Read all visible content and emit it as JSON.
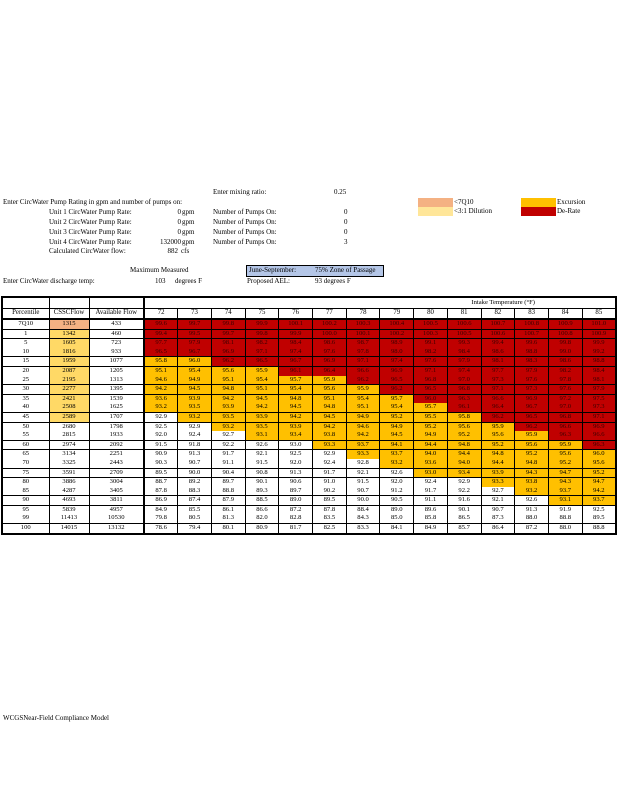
{
  "inputs": {
    "mixing_ratio_label": "Enter mixing ratio:",
    "mixing_ratio_value": "0.25",
    "pump_rating_heading": "Enter CircWater Pump Rating in gpm and number of pumps on:",
    "units": [
      {
        "label": "Unit 1 CircWater Pump Rate:",
        "rate": "0",
        "unit": "gpm",
        "pumps_label": "Number of Pumps On:",
        "pumps": "0"
      },
      {
        "label": "Unit 2 CircWater Pump Rate:",
        "rate": "0",
        "unit": "gpm",
        "pumps_label": "Number of Pumps On:",
        "pumps": "0"
      },
      {
        "label": "Unit 3 CircWater Pump Rate:",
        "rate": "0",
        "unit": "gpm",
        "pumps_label": "Number of Pumps On:",
        "pumps": "0"
      },
      {
        "label": "Unit 4 CircWater Pump Rate:",
        "rate": "132000",
        "unit": "gpm",
        "pumps_label": "Number of Pumps On:",
        "pumps": "3"
      }
    ],
    "calc_flow_label": "Calculated CircWater flow:",
    "calc_flow_value": "882",
    "calc_flow_unit": "cfs",
    "max_measured_label": "Maximum Measured",
    "discharge_label": "Enter CircWater discharge temp:",
    "discharge_value": "103",
    "discharge_unit": "degrees F",
    "zone_period": "June-September:",
    "zone_text": "75%  Zone of Passage",
    "ael_label": "Proposed AEL:",
    "ael_value": "93 degrees  F"
  },
  "legend": [
    {
      "label": "<7Q10",
      "color": "#f4b183"
    },
    {
      "label": "<3:1 Dilution",
      "color": "#ffe699"
    },
    {
      "label": "Excursion",
      "color": "#ffc000"
    },
    {
      "label": "De-Rate",
      "color": "#c00000"
    }
  ],
  "table": {
    "group_heading": "Intake Temperature  (°F)",
    "headers": [
      "Percentile",
      "CSSCFlow",
      "Available Flow"
    ],
    "temps": [
      "72",
      "73",
      "74",
      "75",
      "76",
      "77",
      "78",
      "79",
      "80",
      "81",
      "82",
      "83",
      "84",
      "85"
    ],
    "rows": [
      {
        "p": "7Q10",
        "css": "1315",
        "avail": "433",
        "ff": "7",
        "st": "RRRRRRRRRRRRRR",
        "v": [
          "99.6",
          "99.7",
          "99.8",
          "99.9",
          "100.1",
          "100.2",
          "100.3",
          "100.4",
          "100.5",
          "100.6",
          "100.7",
          "100.8",
          "100.9",
          "101.0"
        ]
      },
      {
        "p": "1",
        "css": "1342",
        "avail": "460",
        "ff": "d",
        "st": "RRRRRRRRRRRRRR",
        "v": [
          "99.4",
          "99.5",
          "99.7",
          "99.8",
          "99.9",
          "100.0",
          "100.1",
          "100.2",
          "100.3",
          "100.5",
          "100.6",
          "100.7",
          "100.8",
          "100.9"
        ]
      },
      {
        "p": "5",
        "css": "1605",
        "avail": "723",
        "ff": "d",
        "st": "RRRRRRRRRRRRRR",
        "v": [
          "97.7",
          "97.9",
          "98.1",
          "98.2",
          "98.4",
          "98.6",
          "98.7",
          "98.9",
          "99.1",
          "99.3",
          "99.4",
          "99.6",
          "99.8",
          "99.9"
        ]
      },
      {
        "p": "10",
        "css": "1816",
        "avail": "933",
        "ff": "d",
        "st": "RRRRRRRRRRRRRR",
        "v": [
          "96.5",
          "96.7",
          "96.9",
          "97.1",
          "97.4",
          "97.6",
          "97.8",
          "98.0",
          "98.2",
          "98.4",
          "98.6",
          "98.8",
          "99.0",
          "99.2"
        ]
      },
      {
        "p": "15",
        "css": "1959",
        "avail": "1077",
        "ff": "d",
        "st": "OORRRRRRRRRRRR",
        "v": [
          "95.8",
          "96.0",
          "96.2",
          "96.5",
          "96.7",
          "96.9",
          "97.1",
          "97.4",
          "97.6",
          "97.9",
          "98.1",
          "98.3",
          "98.6",
          "98.8"
        ]
      },
      {
        "p": "20",
        "css": "2087",
        "avail": "1205",
        "ff": "d",
        "st": "OOOORRRRRRRRRR",
        "v": [
          "95.1",
          "95.4",
          "95.6",
          "95.9",
          "96.1",
          "96.4",
          "96.6",
          "96.9",
          "97.1",
          "97.4",
          "97.7",
          "97.9",
          "98.2",
          "98.4"
        ]
      },
      {
        "p": "25",
        "css": "2195",
        "avail": "1313",
        "ff": "d",
        "st": "OOOOOORRRRRRRR",
        "v": [
          "94.6",
          "94.9",
          "95.1",
          "95.4",
          "95.7",
          "95.9",
          "96.2",
          "96.5",
          "96.8",
          "97.0",
          "97.3",
          "97.6",
          "97.8",
          "98.1"
        ]
      },
      {
        "p": "30",
        "css": "2277",
        "avail": "1395",
        "ff": "d",
        "st": "OOOOOOORRRRRRR",
        "v": [
          "94.2",
          "94.5",
          "94.8",
          "95.1",
          "95.4",
          "95.6",
          "95.9",
          "96.2",
          "96.5",
          "96.8",
          "97.1",
          "97.3",
          "97.6",
          "97.9"
        ]
      },
      {
        "p": "35",
        "css": "2421",
        "avail": "1539",
        "ff": "d",
        "st": "OOOOOOOORRRRRR",
        "v": [
          "93.6",
          "93.9",
          "94.2",
          "94.5",
          "94.8",
          "95.1",
          "95.4",
          "95.7",
          "96.0",
          "96.3",
          "96.6",
          "96.9",
          "97.2",
          "97.5"
        ]
      },
      {
        "p": "40",
        "css": "2508",
        "avail": "1625",
        "ff": "d",
        "st": "OOOOOOOOORRRRR",
        "v": [
          "93.2",
          "93.5",
          "93.9",
          "94.2",
          "94.5",
          "94.8",
          "95.1",
          "95.4",
          "95.7",
          "96.1",
          "96.4",
          "96.7",
          "97.0",
          "97.3"
        ]
      },
      {
        "p": "45",
        "css": "2589",
        "avail": "1707",
        "ff": "d",
        "st": "WOOOOOOOOORRRR",
        "v": [
          "92.9",
          "93.2",
          "93.5",
          "93.9",
          "94.2",
          "94.5",
          "94.9",
          "95.2",
          "95.5",
          "95.8",
          "96.2",
          "96.5",
          "96.8",
          "97.1"
        ]
      },
      {
        "p": "50",
        "css": "2680",
        "avail": "1798",
        "ff": "",
        "st": "WWOOOOOOOOORRR",
        "v": [
          "92.5",
          "92.9",
          "93.2",
          "93.5",
          "93.9",
          "94.2",
          "94.6",
          "94.9",
          "95.2",
          "95.6",
          "95.9",
          "96.2",
          "96.6",
          "96.9"
        ]
      },
      {
        "p": "55",
        "css": "2815",
        "avail": "1933",
        "ff": "",
        "st": "WWWOOOOOOOOORR",
        "v": [
          "92.0",
          "92.4",
          "92.7",
          "93.1",
          "93.4",
          "93.8",
          "94.2",
          "94.5",
          "94.9",
          "95.2",
          "95.6",
          "95.9",
          "96.3",
          "96.6"
        ]
      },
      {
        "p": "60",
        "css": "2974",
        "avail": "2092",
        "ff": "",
        "st": "WWWWWOOOOOOOOR",
        "v": [
          "91.5",
          "91.8",
          "92.2",
          "92.6",
          "93.0",
          "93.3",
          "93.7",
          "94.1",
          "94.4",
          "94.8",
          "95.2",
          "95.6",
          "95.9",
          "96.3"
        ]
      },
      {
        "p": "65",
        "css": "3134",
        "avail": "2251",
        "ff": "",
        "st": "WWWWWWOOOOOOOO",
        "v": [
          "90.9",
          "91.3",
          "91.7",
          "92.1",
          "92.5",
          "92.9",
          "93.3",
          "93.7",
          "94.0",
          "94.4",
          "94.8",
          "95.2",
          "95.6",
          "96.0"
        ]
      },
      {
        "p": "70",
        "css": "3325",
        "avail": "2443",
        "ff": "",
        "st": "WWWWWWWOOOOOOO",
        "v": [
          "90.3",
          "90.7",
          "91.1",
          "91.5",
          "92.0",
          "92.4",
          "92.8",
          "93.2",
          "93.6",
          "94.0",
          "94.4",
          "94.8",
          "95.2",
          "95.6"
        ]
      },
      {
        "p": "75",
        "css": "3591",
        "avail": "2709",
        "ff": "",
        "st": "WWWWWWWWOOOOOO",
        "v": [
          "89.5",
          "90.0",
          "90.4",
          "90.8",
          "91.3",
          "91.7",
          "92.1",
          "92.6",
          "93.0",
          "93.4",
          "93.9",
          "94.3",
          "94.7",
          "95.2"
        ]
      },
      {
        "p": "80",
        "css": "3886",
        "avail": "3004",
        "ff": "",
        "st": "WWWWWWWWWWOOOO",
        "v": [
          "88.7",
          "89.2",
          "89.7",
          "90.1",
          "90.6",
          "91.0",
          "91.5",
          "92.0",
          "92.4",
          "92.9",
          "93.3",
          "93.8",
          "94.3",
          "94.7"
        ]
      },
      {
        "p": "85",
        "css": "4287",
        "avail": "3405",
        "ff": "",
        "st": "WWWWWWWWWWWOOO",
        "v": [
          "87.8",
          "88.3",
          "88.8",
          "89.3",
          "89.7",
          "90.2",
          "90.7",
          "91.2",
          "91.7",
          "92.2",
          "92.7",
          "93.2",
          "93.7",
          "94.2"
        ]
      },
      {
        "p": "90",
        "css": "4693",
        "avail": "3811",
        "ff": "",
        "st": "WWWWWWWWWWWWOO",
        "v": [
          "86.9",
          "87.4",
          "87.9",
          "88.5",
          "89.0",
          "89.5",
          "90.0",
          "90.5",
          "91.1",
          "91.6",
          "92.1",
          "92.6",
          "93.1",
          "93.7"
        ]
      },
      {
        "p": "95",
        "css": "5839",
        "avail": "4957",
        "ff": "",
        "st": "WWWWWWWWWWWWWW",
        "v": [
          "84.9",
          "85.5",
          "86.1",
          "86.6",
          "87.2",
          "87.8",
          "88.4",
          "89.0",
          "89.6",
          "90.1",
          "90.7",
          "91.3",
          "91.9",
          "92.5"
        ]
      },
      {
        "p": "99",
        "css": "11413",
        "avail": "10530",
        "ff": "",
        "st": "WWWWWWWWWWWWWW",
        "v": [
          "79.8",
          "80.5",
          "81.3",
          "82.0",
          "82.8",
          "83.5",
          "84.3",
          "85.0",
          "85.8",
          "86.5",
          "87.3",
          "88.0",
          "88.8",
          "89.5"
        ]
      },
      {
        "p": "100",
        "css": "14015",
        "avail": "13132",
        "ff": "",
        "st": "WWWWWWWWWWWWWW",
        "v": [
          "78.6",
          "79.4",
          "80.1",
          "80.9",
          "81.7",
          "82.5",
          "83.3",
          "84.1",
          "84.9",
          "85.7",
          "86.4",
          "87.2",
          "88.0",
          "88.8"
        ]
      }
    ]
  },
  "footer": "WCGSNear-Field Compliance Model"
}
